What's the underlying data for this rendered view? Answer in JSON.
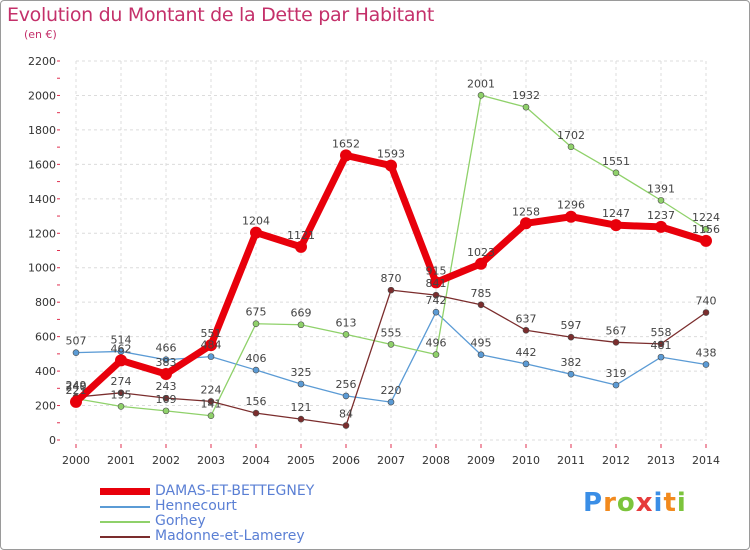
{
  "header": {
    "title": "Evolution du Montant de la Dette par Habitant",
    "unit": "(en €)"
  },
  "logo": {
    "letters": [
      "P",
      "r",
      "o",
      "x",
      "i",
      "t",
      "i"
    ],
    "colors": [
      "#3a8ee6",
      "#f28a1e",
      "#7cc43c",
      "#e63c3c",
      "#3a8ee6",
      "#f28a1e",
      "#7cc43c"
    ]
  },
  "chart_data": {
    "type": "line",
    "x": [
      "2000",
      "2001",
      "2002",
      "2003",
      "2004",
      "2005",
      "2006",
      "2007",
      "2008",
      "2009",
      "2010",
      "2011",
      "2012",
      "2013",
      "2014"
    ],
    "ylim": [
      0,
      2200
    ],
    "yticks": [
      0,
      200,
      400,
      600,
      800,
      1000,
      1200,
      1400,
      1600,
      1800,
      2000,
      2200
    ],
    "grid": true,
    "legend_position": "bottom",
    "series": [
      {
        "name": "DAMAS-ET-BETTEGNEY",
        "color": "#e8000b",
        "values": [
          221,
          462,
          383,
          551,
          1204,
          1121,
          1652,
          1593,
          915,
          1023,
          1258,
          1296,
          1247,
          1237,
          1156
        ],
        "labels": [
          "221",
          "462",
          "383",
          "551",
          "1204",
          "1121",
          "1652",
          "1593",
          "915",
          "1023",
          "1258",
          "1296",
          "1247",
          "1237",
          "1156"
        ]
      },
      {
        "name": "Hennecourt",
        "color": "#5b9bd5",
        "values": [
          507,
          514,
          466,
          484,
          406,
          325,
          256,
          220,
          742,
          495,
          442,
          382,
          319,
          481,
          438
        ],
        "labels": [
          "507",
          "514",
          "466",
          "484",
          "406",
          "325",
          "256",
          "220",
          "742",
          "495",
          "442",
          "382",
          "319",
          "481",
          "438"
        ]
      },
      {
        "name": "Gorhey",
        "color": "#8fd16a",
        "values": [
          240,
          195,
          169,
          141,
          675,
          669,
          613,
          555,
          496,
          2001,
          1932,
          1702,
          1551,
          1391,
          1224
        ],
        "labels": [
          "240",
          "195",
          "169",
          "141",
          "675",
          "669",
          "613",
          "555",
          "496",
          "2001",
          "1932",
          "1702",
          "1551",
          "1391",
          "1224"
        ]
      },
      {
        "name": "Madonne-et-Lamerey",
        "color": "#7b2d2d",
        "values": [
          249,
          274,
          243,
          224,
          156,
          121,
          84,
          870,
          841,
          785,
          637,
          597,
          567,
          558,
          740
        ],
        "labels": [
          "249",
          "274",
          "243",
          "224",
          "156",
          "121",
          "84",
          "870",
          "841",
          "785",
          "637",
          "597",
          "567",
          "558",
          "740"
        ]
      }
    ]
  }
}
